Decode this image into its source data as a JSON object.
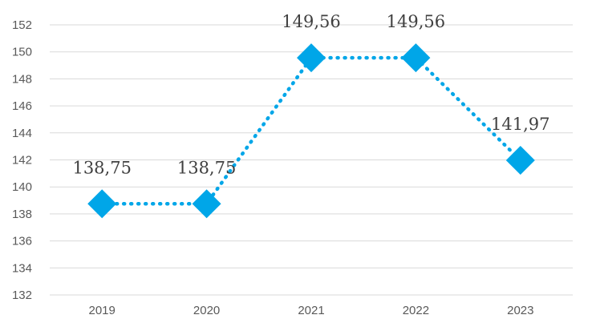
{
  "chart_data": {
    "type": "line",
    "title": "",
    "xlabel": "",
    "ylabel": "",
    "categories": [
      "2019",
      "2020",
      "2021",
      "2022",
      "2023"
    ],
    "series": [
      {
        "values": [
          138.75,
          138.75,
          149.56,
          149.56,
          141.97
        ],
        "labels": [
          "138,75",
          "138,75",
          "149,56",
          "149,56",
          "141,97"
        ],
        "color": "#00a6e8",
        "line_style": "dotted",
        "marker": "diamond"
      }
    ],
    "ylim": [
      132,
      152
    ],
    "y_ticks": [
      "132",
      "134",
      "136",
      "138",
      "140",
      "142",
      "144",
      "146",
      "148",
      "150",
      "152"
    ],
    "grid": true,
    "legend": "none"
  }
}
